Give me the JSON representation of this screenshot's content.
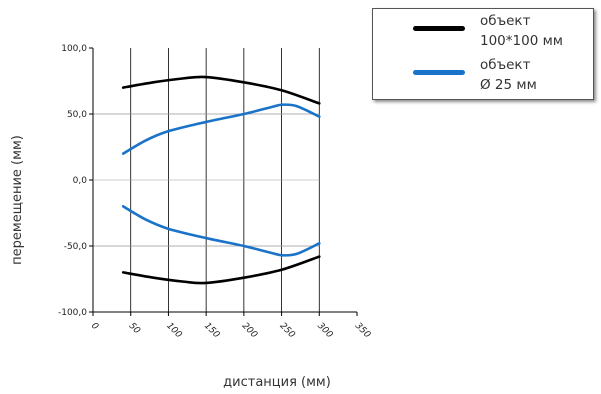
{
  "chart_data": {
    "type": "line",
    "xlabel": "дистанция (мм)",
    "ylabel": "перемещение (мм)",
    "xlim": [
      0,
      350
    ],
    "ylim": [
      -100,
      100
    ],
    "x_ticks": [
      "0",
      "50",
      "100",
      "150",
      "200",
      "250",
      "300",
      "350"
    ],
    "y_ticks": [
      "100,0",
      "50,0",
      "0,0",
      "-50,0",
      "-100,0"
    ],
    "y_tick_values": [
      100,
      50,
      0,
      -50,
      -100
    ],
    "grid": "vertical lines at x ticks, horizontal line at 50 and -50",
    "legend_position": "top-right, outside plot",
    "series": [
      {
        "name": "объект\n100*100 мм",
        "color": "#000000",
        "curves": [
          {
            "x": [
              40,
              80,
              120,
              150,
              200,
              250,
              300
            ],
            "y": [
              70,
              74,
              77,
              78,
              74,
              68,
              58
            ]
          },
          {
            "x": [
              40,
              80,
              120,
              150,
              200,
              250,
              300
            ],
            "y": [
              -70,
              -74,
              -77,
              -78,
              -74,
              -68,
              -58
            ]
          }
        ]
      },
      {
        "name": "объект\nØ 25 мм",
        "color": "#1a73c9",
        "curves": [
          {
            "x": [
              40,
              70,
              100,
              150,
              200,
              235,
              250,
              270,
              300
            ],
            "y": [
              20,
              30,
              37,
              44,
              50,
              55,
              57,
              56,
              48
            ]
          },
          {
            "x": [
              40,
              70,
              100,
              150,
              200,
              235,
              250,
              270,
              300
            ],
            "y": [
              -20,
              -30,
              -37,
              -44,
              -50,
              -55,
              -57,
              -56,
              -48
            ]
          }
        ]
      }
    ]
  }
}
